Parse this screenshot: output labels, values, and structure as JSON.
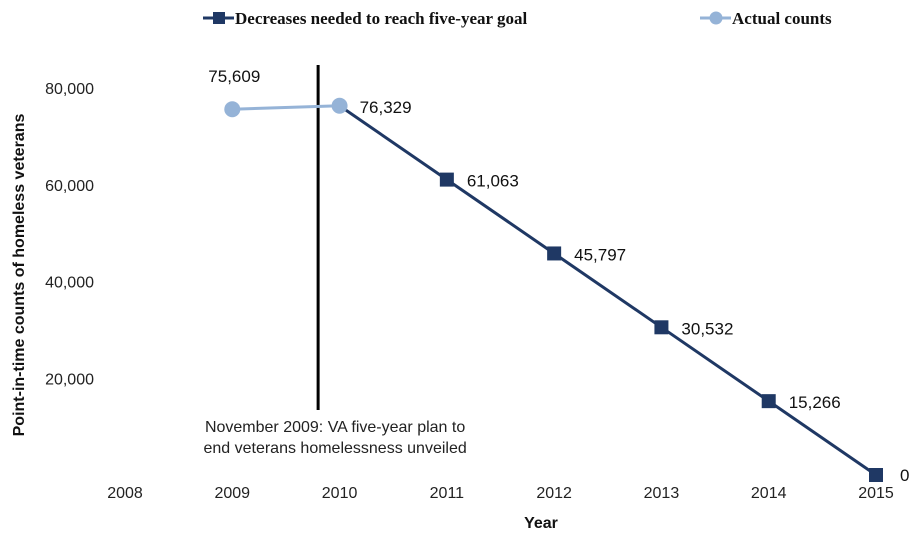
{
  "chart_data": {
    "type": "line",
    "xlabel": "Year",
    "ylabel": "Point-in-time counts of homeless veterans",
    "xlim": [
      2008,
      2015
    ],
    "x_ticks": [
      "2008",
      "2009",
      "2010",
      "2011",
      "2012",
      "2013",
      "2014",
      "2015"
    ],
    "ylim": [
      0,
      80000
    ],
    "y_ticks": [
      {
        "value": 20000,
        "label": "20,000"
      },
      {
        "value": 40000,
        "label": "40,000"
      },
      {
        "value": 60000,
        "label": "60,000"
      },
      {
        "value": 80000,
        "label": "80,000"
      }
    ],
    "legend_position": "top",
    "grid": false,
    "series": [
      {
        "name": "Decreases needed to reach five-year goal",
        "color": "#1f3864",
        "marker": "square",
        "points": [
          {
            "x": 2010,
            "y": 76329,
            "label": ""
          },
          {
            "x": 2011,
            "y": 61063,
            "label": "61,063"
          },
          {
            "x": 2012,
            "y": 45797,
            "label": "45,797"
          },
          {
            "x": 2013,
            "y": 30532,
            "label": "30,532"
          },
          {
            "x": 2014,
            "y": 15266,
            "label": "15,266"
          },
          {
            "x": 2015,
            "y": 0,
            "label": "0"
          }
        ]
      },
      {
        "name": "Actual counts",
        "color": "#95b3d7",
        "marker": "circle",
        "points": [
          {
            "x": 2009,
            "y": 75609,
            "label": "75,609"
          },
          {
            "x": 2010,
            "y": 76329,
            "label": "76,329"
          }
        ]
      }
    ],
    "annotation": {
      "x": "November 2009",
      "lines": [
        "November 2009: VA five-year plan to",
        "end veterans homelessness unveiled"
      ]
    }
  }
}
